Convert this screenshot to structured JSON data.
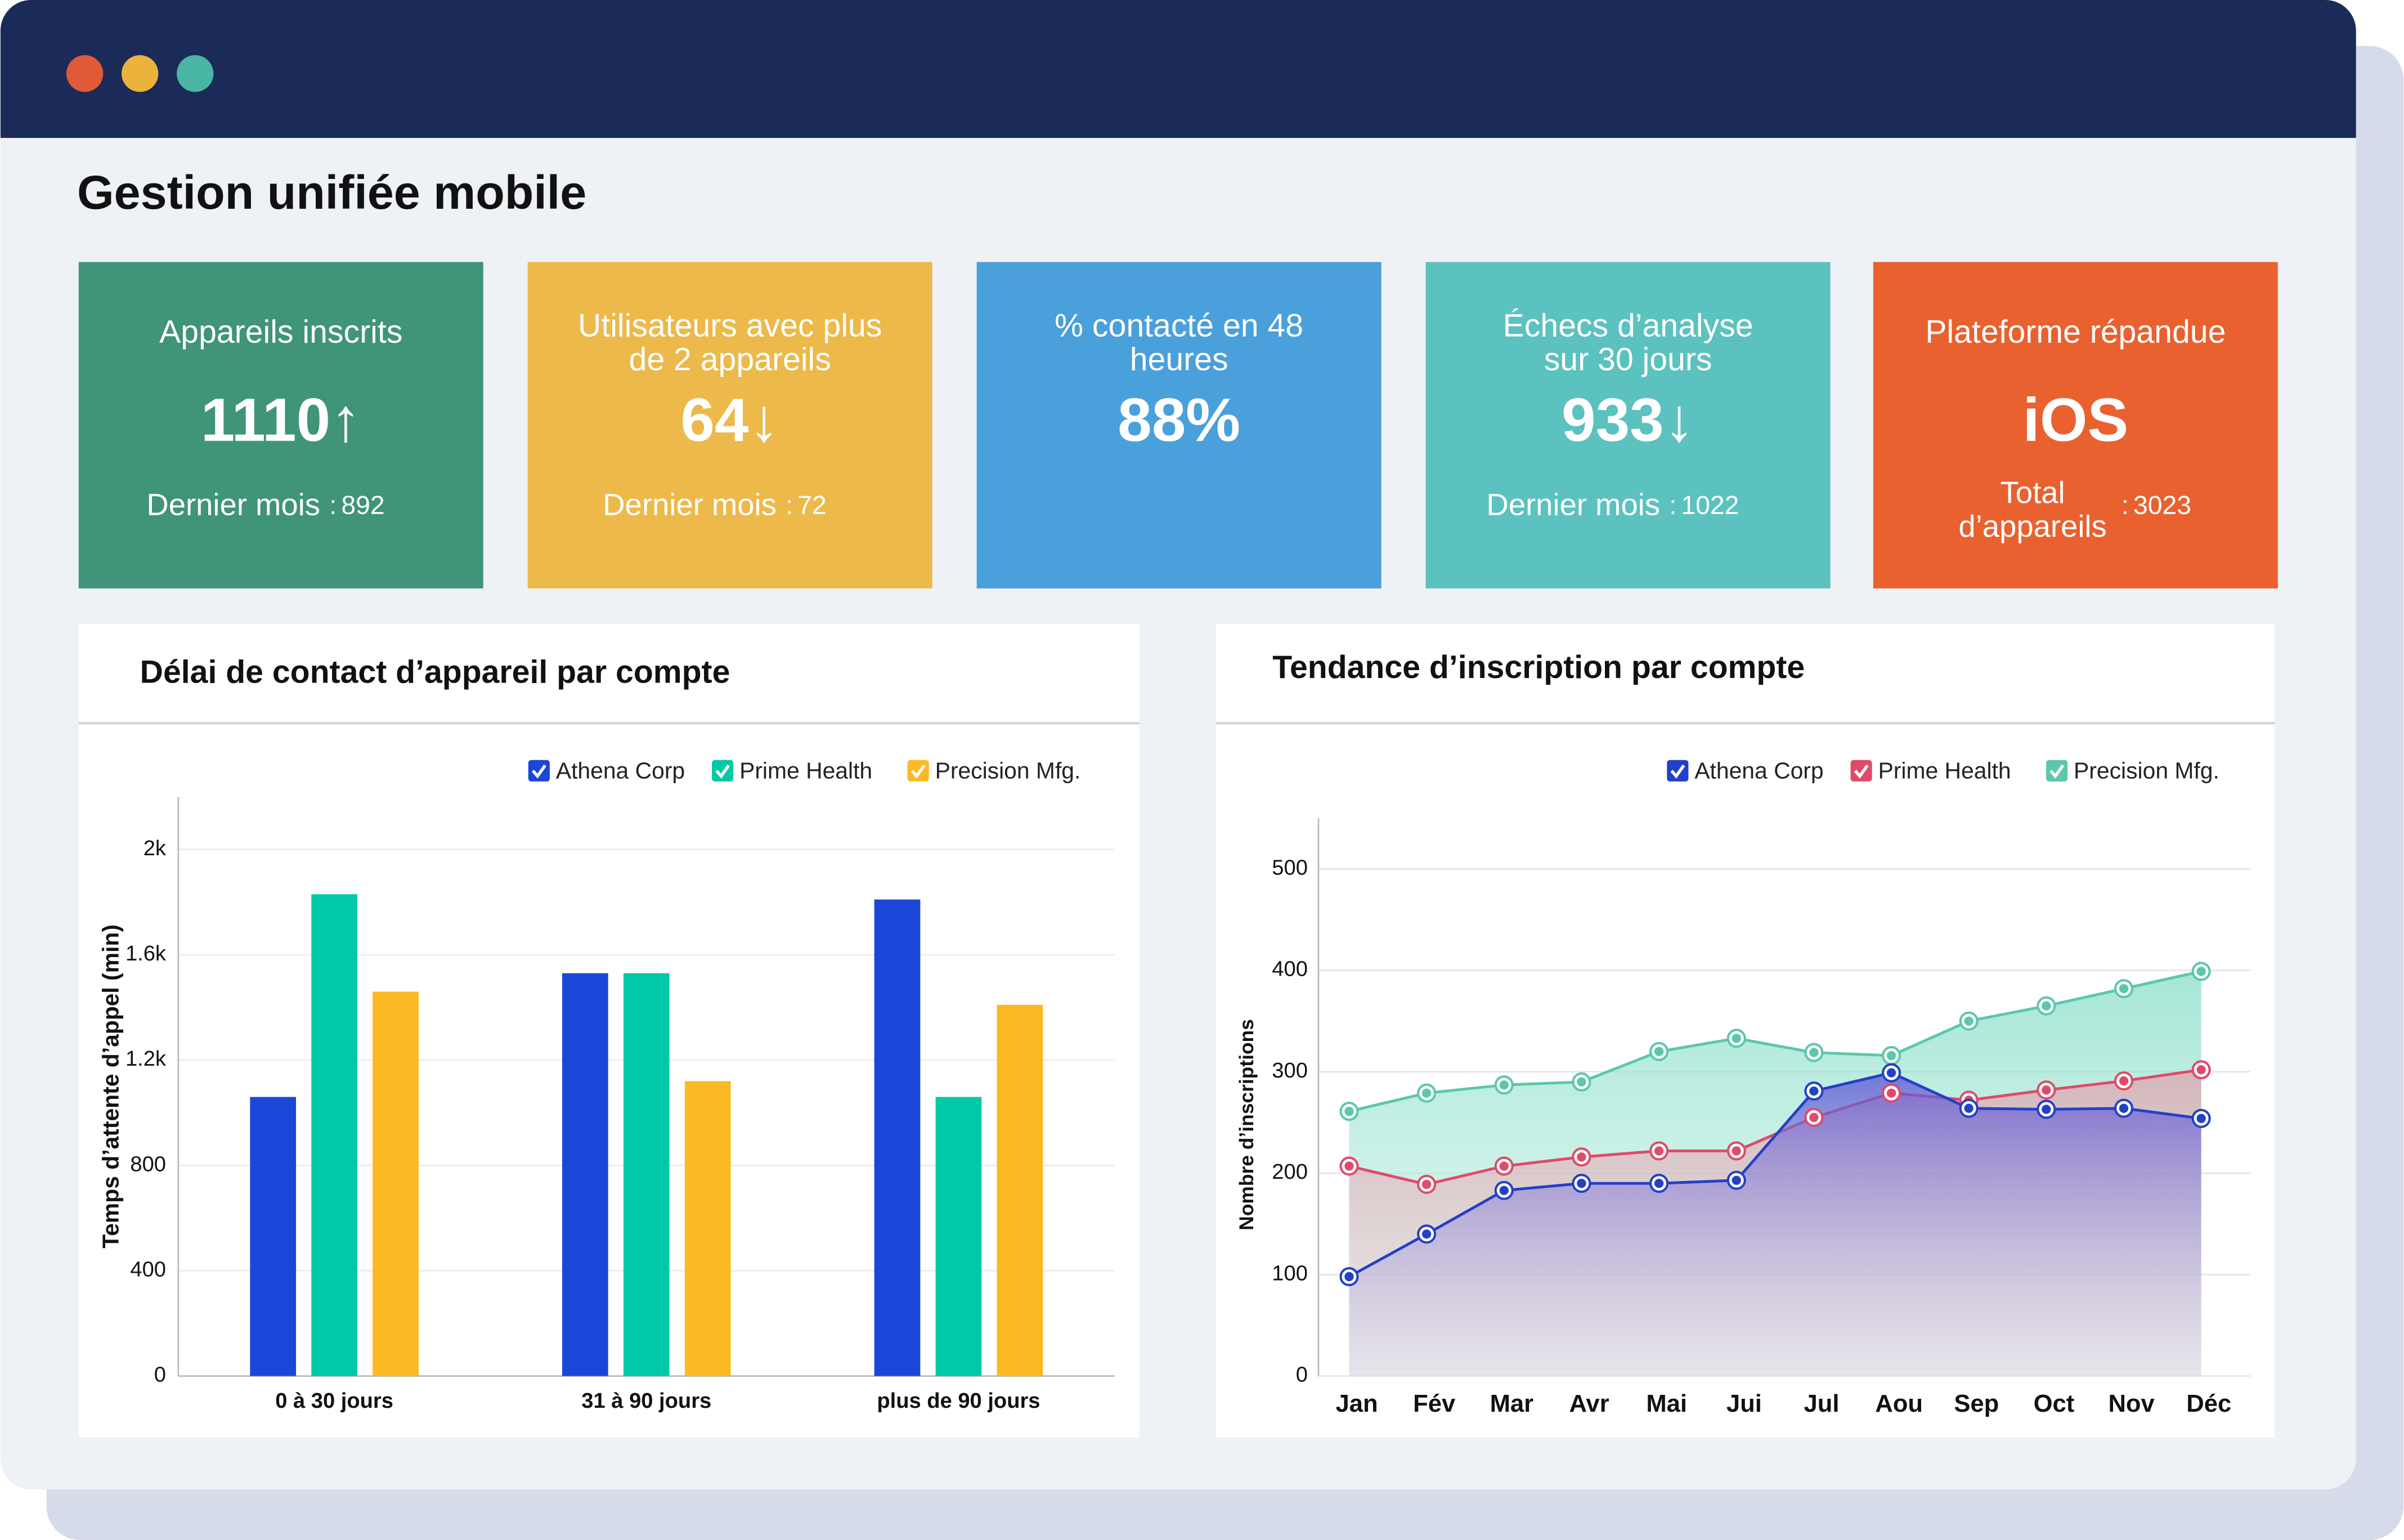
{
  "header": {
    "title": "Gestion unifiée mobile"
  },
  "kpis": [
    {
      "title_lines": [
        "Appareils inscrits"
      ],
      "value": "1110",
      "trend": "↑",
      "sub_label_lines": [
        "Dernier mois"
      ],
      "sub_sep": ":",
      "sub_value": "892",
      "color": "#3f9479"
    },
    {
      "title_lines": [
        "Utilisateurs avec plus",
        "de 2 appareils"
      ],
      "value": "64",
      "trend": "↓",
      "sub_label_lines": [
        "Dernier mois"
      ],
      "sub_sep": ":",
      "sub_value": "72",
      "color": "#ecb94a"
    },
    {
      "title_lines": [
        "% contacté en 48",
        "heures"
      ],
      "value": "88%",
      "color": "#4aa0da"
    },
    {
      "title_lines": [
        "Échecs d’analyse",
        "sur 30 jours"
      ],
      "value": "933",
      "trend": "↓",
      "sub_label_lines": [
        "Dernier mois"
      ],
      "sub_sep": ":",
      "sub_value": "1022",
      "color": "#5bc2bf"
    },
    {
      "title_lines": [
        "Plateforme répandue"
      ],
      "value": "iOS",
      "sub_label_lines": [
        "Total",
        "d’appareils"
      ],
      "sub_sep": ":",
      "sub_value": "3023",
      "color": "#e8612f"
    }
  ],
  "chart_data": [
    {
      "type": "bar",
      "title": "Délai de contact d’appareil par compte",
      "y_label": "Temps d’attente d’appel (min)",
      "categories": [
        "0 à 30 jours",
        "31 à 90 jours",
        "plus de 90 jours"
      ],
      "series": [
        {
          "name": "Athena Corp",
          "color": "#1a47d8",
          "values": [
            1060,
            1530,
            1810
          ]
        },
        {
          "name": "Prime Health",
          "color": "#00c9a7",
          "values": [
            1830,
            1530,
            1060
          ]
        },
        {
          "name": "Precision Mfg.",
          "color": "#fbb924",
          "values": [
            1460,
            1120,
            1410
          ]
        }
      ],
      "ylim": [
        0,
        2200
      ],
      "yticks": [
        0,
        400,
        800,
        {
          "value": 1200,
          "label": "1.2k"
        },
        {
          "value": 1600,
          "label": "1.6k"
        },
        {
          "value": 2000,
          "label": "2k"
        }
      ],
      "grid": true,
      "legend": "top-right"
    },
    {
      "type": "line",
      "title": "Tendance d’inscription par compte",
      "y_label": "Nombre d’inscriptions",
      "categories": [
        "Jan",
        "Fév",
        "Mar",
        "Avr",
        "Mai",
        "Jui",
        "Jul",
        "Aou",
        "Sep",
        "Oct",
        "Nov",
        "Déc"
      ],
      "series": [
        {
          "name": "Precision Mfg.",
          "color": "#5cc7ab",
          "values": [
            261,
            279,
            287,
            290,
            320,
            333,
            319,
            316,
            350,
            365,
            382,
            399
          ]
        },
        {
          "name": "Prime Health",
          "color": "#e04a6a",
          "values": [
            207,
            189,
            207,
            216,
            222,
            222,
            255,
            279,
            272,
            282,
            291,
            302
          ]
        },
        {
          "name": "Athena Corp",
          "color": "#2340c8",
          "values": [
            98,
            140,
            183,
            190,
            190,
            193,
            281,
            299,
            264,
            263,
            264,
            254
          ]
        }
      ],
      "legend_order": [
        2,
        1,
        0
      ],
      "area": true,
      "ylim": [
        0,
        550
      ],
      "yticks": [
        0,
        100,
        200,
        300,
        400,
        500
      ],
      "grid": true,
      "legend": "top-right"
    }
  ]
}
